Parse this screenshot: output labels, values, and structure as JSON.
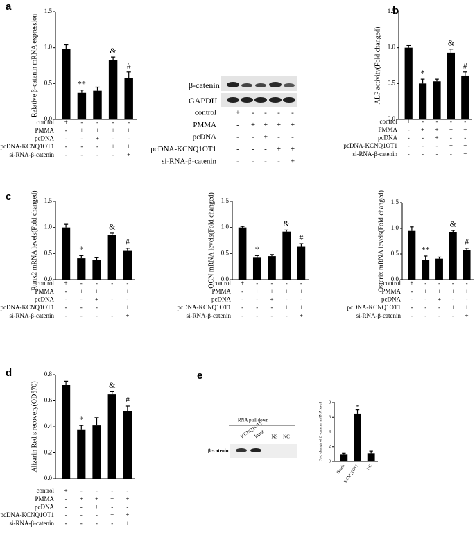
{
  "panel_labels": [
    "a",
    "b",
    "c",
    "d",
    "e"
  ],
  "conditions": {
    "rows": [
      {
        "label": "control",
        "signs": [
          "+",
          "-",
          "-",
          "-",
          "-"
        ]
      },
      {
        "label": "PMMA",
        "signs": [
          "-",
          "+",
          "+",
          "+",
          "+"
        ]
      },
      {
        "label": "pcDNA",
        "signs": [
          "-",
          "-",
          "+",
          "-",
          "-"
        ]
      },
      {
        "label": "pcDNA-KCNQ1OT1",
        "signs": [
          "-",
          "-",
          "-",
          "+",
          "+"
        ]
      },
      {
        "label": "si-RNA-β-catenin",
        "signs": [
          "-",
          "-",
          "-",
          "-",
          "+"
        ]
      }
    ]
  },
  "blot_a": {
    "rows": [
      "β-catenin",
      "GAPDH"
    ]
  },
  "blot_e": {
    "title": "RNA pull down",
    "lanes": [
      "KCNQ1OT1",
      "Input",
      "NS",
      "NC"
    ],
    "row": "β -catenin"
  },
  "chart_data": [
    {
      "type": "bar",
      "y_label": "Relative β-catenin mRNA expression",
      "color": "#000000",
      "values": [
        0.98,
        0.37,
        0.4,
        0.83,
        0.58
      ],
      "errors": [
        0.06,
        0.04,
        0.05,
        0.04,
        0.08
      ],
      "bar_labels": [
        null,
        "**",
        null,
        "&",
        "#"
      ],
      "ylim": [
        0,
        1.5
      ],
      "yticks": [
        {
          "value": 0,
          "label": "0.0"
        },
        {
          "value": 0.5,
          "label": "0.5"
        },
        {
          "value": 1,
          "label": "1.0"
        },
        {
          "value": 1.5,
          "label": "1.5"
        }
      ]
    },
    {
      "type": "bar",
      "y_label": "ALP activity(Fold changed)",
      "color": "#000000",
      "values": [
        1.0,
        0.5,
        0.53,
        0.93,
        0.61
      ],
      "errors": [
        0.03,
        0.06,
        0.03,
        0.05,
        0.05
      ],
      "bar_labels": [
        null,
        "*",
        null,
        "&",
        "#"
      ],
      "ylim": [
        0,
        1.5
      ],
      "yticks": [
        {
          "value": 0,
          "label": "0.0"
        },
        {
          "value": 0.5,
          "label": "0.5"
        },
        {
          "value": 1,
          "label": "1.0"
        },
        {
          "value": 1.5,
          "label": "1.5"
        }
      ]
    },
    {
      "type": "bar",
      "y_label": "Runx2 mRNA levels(Fold changed)",
      "color": "#000000",
      "values": [
        1.0,
        0.41,
        0.38,
        0.86,
        0.55
      ],
      "errors": [
        0.06,
        0.05,
        0.04,
        0.03,
        0.05
      ],
      "bar_labels": [
        null,
        "*",
        null,
        "&",
        "#"
      ],
      "ylim": [
        0,
        1.5
      ],
      "yticks": [
        {
          "value": 0,
          "label": "0.0"
        },
        {
          "value": 0.5,
          "label": "0.5"
        },
        {
          "value": 1,
          "label": "1.0"
        },
        {
          "value": 1.5,
          "label": "1.5"
        }
      ]
    },
    {
      "type": "bar",
      "y_label": "OCN mRNA levels(Fold changed)",
      "color": "#000000",
      "values": [
        1.0,
        0.42,
        0.45,
        0.92,
        0.63
      ],
      "errors": [
        0.02,
        0.04,
        0.03,
        0.03,
        0.06
      ],
      "bar_labels": [
        null,
        "*",
        null,
        "&",
        "#"
      ],
      "ylim": [
        0,
        1.5
      ],
      "yticks": [
        {
          "value": 0,
          "label": "0.0"
        },
        {
          "value": 0.5,
          "label": "0.5"
        },
        {
          "value": 1,
          "label": "1.0"
        },
        {
          "value": 1.5,
          "label": "1.5"
        }
      ]
    },
    {
      "type": "bar",
      "y_label": "Osterix mRNA levels(Fold changed)",
      "color": "#000000",
      "values": [
        0.95,
        0.39,
        0.41,
        0.92,
        0.58
      ],
      "errors": [
        0.08,
        0.07,
        0.03,
        0.04,
        0.03
      ],
      "bar_labels": [
        null,
        "**",
        null,
        "&",
        "#"
      ],
      "ylim": [
        0,
        1.5
      ],
      "yticks": [
        {
          "value": 0,
          "label": "0.0"
        },
        {
          "value": 0.5,
          "label": "0.5"
        },
        {
          "value": 1,
          "label": "1.0"
        },
        {
          "value": 1.5,
          "label": "1.5"
        }
      ]
    },
    {
      "type": "bar",
      "y_label": "Alizarin Red s recovery(OD570)",
      "color": "#000000",
      "values": [
        0.72,
        0.38,
        0.41,
        0.65,
        0.52
      ],
      "errors": [
        0.03,
        0.03,
        0.06,
        0.02,
        0.04
      ],
      "bar_labels": [
        null,
        "*",
        null,
        "&",
        "#"
      ],
      "ylim": [
        0,
        0.8
      ],
      "yticks": [
        {
          "value": 0,
          "label": "0.0"
        },
        {
          "value": 0.2,
          "label": "0.2"
        },
        {
          "value": 0.4,
          "label": "0.4"
        },
        {
          "value": 0.6,
          "label": "0.6"
        },
        {
          "value": 0.8,
          "label": "0.8"
        }
      ]
    },
    {
      "type": "bar",
      "y_label": "Fold change of β -catenin mRNA level",
      "color": "#000000",
      "categories": [
        "Beads",
        "KCNQ1OT1",
        "NC"
      ],
      "values": [
        1.0,
        6.5,
        1.1
      ],
      "errors": [
        0.1,
        0.5,
        0.3
      ],
      "bar_labels": [
        null,
        "*",
        null
      ],
      "ylim": [
        0,
        8
      ],
      "yticks": [
        0,
        2,
        4,
        6,
        8
      ]
    }
  ]
}
